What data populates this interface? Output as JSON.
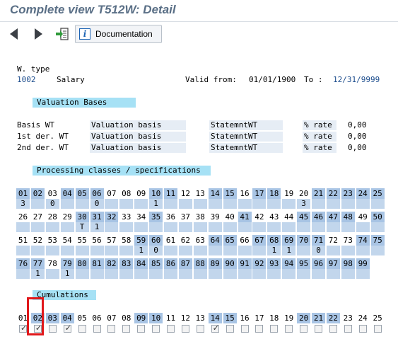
{
  "window": {
    "title": "Complete view T512W: Detail"
  },
  "toolbar": {
    "back_icon": "triangle-left-icon",
    "forward_icon": "triangle-right-icon",
    "export_icon": "export-arrow-icon",
    "documentation_label": "Documentation"
  },
  "header": {
    "wtype_label": "W. type",
    "wtype_code": "1002",
    "wtype_text": "Salary",
    "valid_from_label": "Valid from:",
    "valid_from": "01/01/1900",
    "to_label": "To :",
    "valid_to": "12/31/9999"
  },
  "valuation": {
    "title": "Valuation Bases",
    "rows": [
      {
        "label": "Basis WT",
        "basis": "Valuation basis",
        "stmt": "StatemntWT",
        "pct": "% rate",
        "value": "0,00"
      },
      {
        "label": "1st der. WT",
        "basis": "Valuation basis",
        "stmt": "StatemntWT",
        "pct": "% rate",
        "value": "0,00"
      },
      {
        "label": "2nd der. WT",
        "basis": "Valuation basis",
        "stmt": "StatemntWT",
        "pct": "% rate",
        "value": "0,00"
      }
    ]
  },
  "processing": {
    "title": "Processing classes / specifications",
    "rows": [
      {
        "numbers": [
          "01",
          "02",
          "03",
          "04",
          "05",
          "06",
          "07",
          "08",
          "09",
          "10",
          "11",
          "12",
          "13",
          "14",
          "15",
          "16",
          "17",
          "18",
          "19",
          "20",
          "21",
          "22",
          "23",
          "24",
          "25"
        ],
        "highlighted": [
          "01",
          "02",
          "04",
          "05",
          "06",
          "10",
          "11",
          "14",
          "15",
          "17",
          "18",
          "21",
          "22",
          "23",
          "24",
          "25"
        ],
        "values": [
          "3",
          "",
          "0",
          "",
          "",
          "0",
          "",
          "",
          "",
          "1",
          "",
          "",
          "",
          "",
          "",
          "",
          "",
          "",
          "",
          "3",
          "",
          "",
          "",
          "",
          ""
        ]
      },
      {
        "numbers": [
          "26",
          "27",
          "28",
          "29",
          "30",
          "31",
          "32",
          "33",
          "34",
          "35",
          "36",
          "37",
          "38",
          "39",
          "40",
          "41",
          "42",
          "43",
          "44",
          "45",
          "46",
          "47",
          "48",
          "49",
          "50"
        ],
        "highlighted": [
          "30",
          "31",
          "32",
          "35",
          "41",
          "45",
          "46",
          "47",
          "48",
          "50"
        ],
        "values": [
          "",
          "",
          "",
          "",
          "T",
          "1",
          "",
          "",
          "",
          "",
          "",
          "",
          "",
          "",
          "",
          "",
          "",
          "",
          "",
          "",
          "",
          "",
          "",
          "",
          ""
        ]
      },
      {
        "numbers": [
          "51",
          "52",
          "53",
          "54",
          "55",
          "56",
          "57",
          "58",
          "59",
          "60",
          "61",
          "62",
          "63",
          "64",
          "65",
          "66",
          "67",
          "68",
          "69",
          "70",
          "71",
          "72",
          "73",
          "74",
          "75"
        ],
        "highlighted": [
          "59",
          "60",
          "64",
          "65",
          "67",
          "68",
          "69",
          "70",
          "71",
          "74",
          "75"
        ],
        "values": [
          "",
          "",
          "",
          "",
          "",
          "",
          "",
          "",
          "1",
          "0",
          "",
          "",
          "",
          "",
          "",
          "",
          "",
          "1",
          "1",
          "",
          "0",
          "",
          "",
          "",
          ""
        ]
      },
      {
        "numbers": [
          "76",
          "77",
          "78",
          "79",
          "80",
          "81",
          "82",
          "83",
          "84",
          "85",
          "86",
          "87",
          "88",
          "89",
          "90",
          "91",
          "92",
          "93",
          "94",
          "95",
          "96",
          "97",
          "98",
          "99"
        ],
        "highlighted": [
          "76",
          "77",
          "79",
          "80",
          "81",
          "82",
          "83",
          "84",
          "85",
          "86",
          "87",
          "88",
          "89",
          "90",
          "91",
          "92",
          "93",
          "94",
          "95",
          "96",
          "97",
          "98",
          "99"
        ],
        "values": [
          "",
          "1",
          "",
          "1",
          "",
          "",
          "",
          "",
          "",
          "",
          "",
          "",
          "",
          "",
          "",
          "",
          "",
          "",
          "",
          "",
          "",
          "",
          "",
          ""
        ]
      }
    ]
  },
  "cumulations": {
    "title": "Cumulations",
    "numbers": [
      "01",
      "02",
      "03",
      "04",
      "05",
      "06",
      "07",
      "08",
      "09",
      "10",
      "11",
      "12",
      "13",
      "14",
      "15",
      "16",
      "17",
      "18",
      "19",
      "20",
      "21",
      "22",
      "23",
      "24",
      "25"
    ],
    "highlighted": [
      "02",
      "03",
      "04",
      "09",
      "10",
      "14",
      "15",
      "20",
      "21",
      "22"
    ],
    "checked": [
      "01",
      "02",
      "04",
      "14"
    ]
  }
}
